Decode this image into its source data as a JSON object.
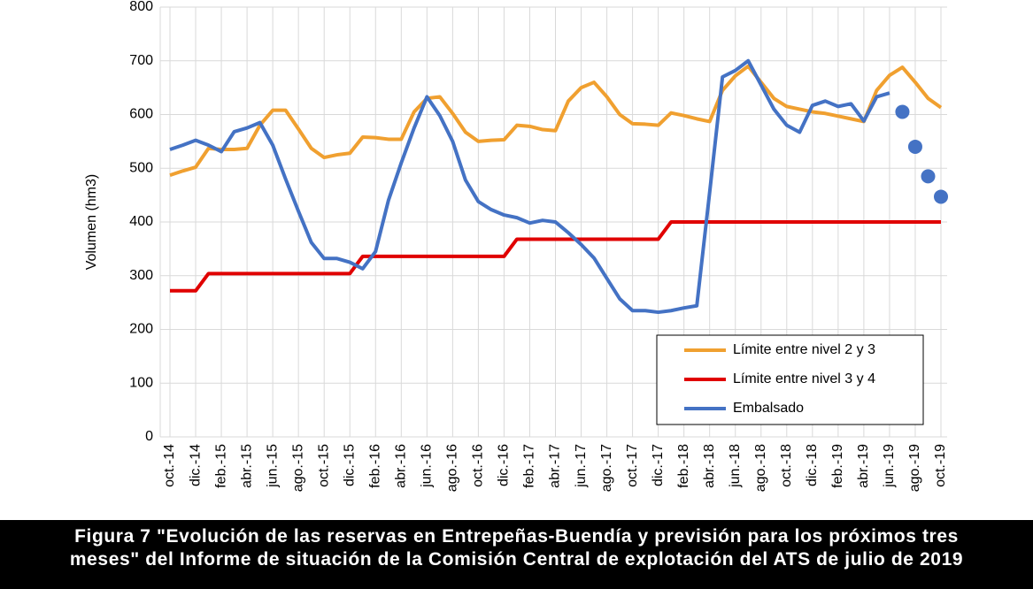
{
  "chart_data": {
    "type": "line",
    "y_label": "Volumen (hm3)",
    "categories": [
      "oct.-14",
      null,
      "dic.-14",
      null,
      "feb.-15",
      null,
      "abr.-15",
      null,
      "jun.-15",
      null,
      "ago.-15",
      null,
      "oct.-15",
      null,
      "dic.-15",
      null,
      "feb.-16",
      null,
      "abr.-16",
      null,
      "jun.-16",
      null,
      "ago.-16",
      null,
      "oct.-16",
      null,
      "dic.-16",
      null,
      "feb.-17",
      null,
      "abr.-17",
      null,
      "jun.-17",
      null,
      "ago.-17",
      null,
      "oct.-17",
      null,
      "dic.-17",
      null,
      "feb.-18",
      null,
      "abr.-18",
      null,
      "jun.-18",
      null,
      "ago.-18",
      null,
      "oct.-18",
      null,
      "dic.-18",
      null,
      "feb.-19",
      null,
      "abr.-19",
      null,
      "jun.-19",
      null,
      "ago.-19",
      null,
      "oct.-19"
    ],
    "ylim": [
      0,
      800
    ],
    "yticks": [
      0,
      100,
      200,
      300,
      400,
      500,
      600,
      700,
      800
    ],
    "grid": true,
    "legend": "lower-right",
    "series": [
      {
        "name": "Límite entre nivel 2 y 3",
        "color": "#f0a030",
        "values": [
          487,
          495,
          502,
          537,
          535,
          535,
          537,
          580,
          608,
          608,
          573,
          537,
          520,
          525,
          528,
          558,
          557,
          554,
          554,
          605,
          630,
          633,
          602,
          567,
          550,
          552,
          553,
          580,
          578,
          572,
          570,
          625,
          650,
          660,
          633,
          600,
          583,
          582,
          580,
          603,
          598,
          592,
          587,
          645,
          672,
          690,
          660,
          630,
          615,
          610,
          605,
          602,
          597,
          592,
          587,
          645,
          673,
          688,
          660,
          630,
          613
        ]
      },
      {
        "name": "Límite entre nivel 3 y 4",
        "color": "#e00000",
        "values": [
          272,
          272,
          272,
          304,
          304,
          304,
          304,
          304,
          304,
          304,
          304,
          304,
          304,
          304,
          304,
          336,
          336,
          336,
          336,
          336,
          336,
          336,
          336,
          336,
          336,
          336,
          336,
          368,
          368,
          368,
          368,
          368,
          368,
          368,
          368,
          368,
          368,
          368,
          368,
          400,
          400,
          400,
          400,
          400,
          400,
          400,
          400,
          400,
          400,
          400,
          400,
          400,
          400,
          400,
          400,
          400,
          400,
          400,
          400,
          400,
          400
        ]
      },
      {
        "name": "Embalsado",
        "color": "#4472c4",
        "values": [
          535,
          543,
          552,
          543,
          531,
          568,
          575,
          585,
          543,
          480,
          420,
          362,
          332,
          332,
          325,
          313,
          345,
          440,
          510,
          575,
          633,
          598,
          550,
          478,
          438,
          423,
          413,
          408,
          398,
          403,
          400,
          380,
          358,
          333,
          295,
          257,
          235,
          235,
          232,
          235,
          240,
          244,
          455,
          670,
          682,
          700,
          655,
          610,
          580,
          567,
          617,
          625,
          615,
          620,
          588,
          633,
          640,
          null,
          null,
          null,
          null
        ]
      },
      {
        "color": "#4472c4",
        "marker": "circle",
        "values": [
          null,
          null,
          null,
          null,
          null,
          null,
          null,
          null,
          null,
          null,
          null,
          null,
          null,
          null,
          null,
          null,
          null,
          null,
          null,
          null,
          null,
          null,
          null,
          null,
          null,
          null,
          null,
          null,
          null,
          null,
          null,
          null,
          null,
          null,
          null,
          null,
          null,
          null,
          null,
          null,
          null,
          null,
          null,
          null,
          null,
          null,
          null,
          null,
          null,
          null,
          null,
          null,
          null,
          null,
          null,
          null,
          null,
          605,
          540,
          485,
          447
        ]
      }
    ]
  },
  "caption": [
    "Figura 7 \"Evolución de las reservas en Entrepeñas-Buendía y previsión para los próximos tres",
    "meses\" del Informe de situación de la Comisión Central de explotación del ATS de julio de 2019"
  ]
}
